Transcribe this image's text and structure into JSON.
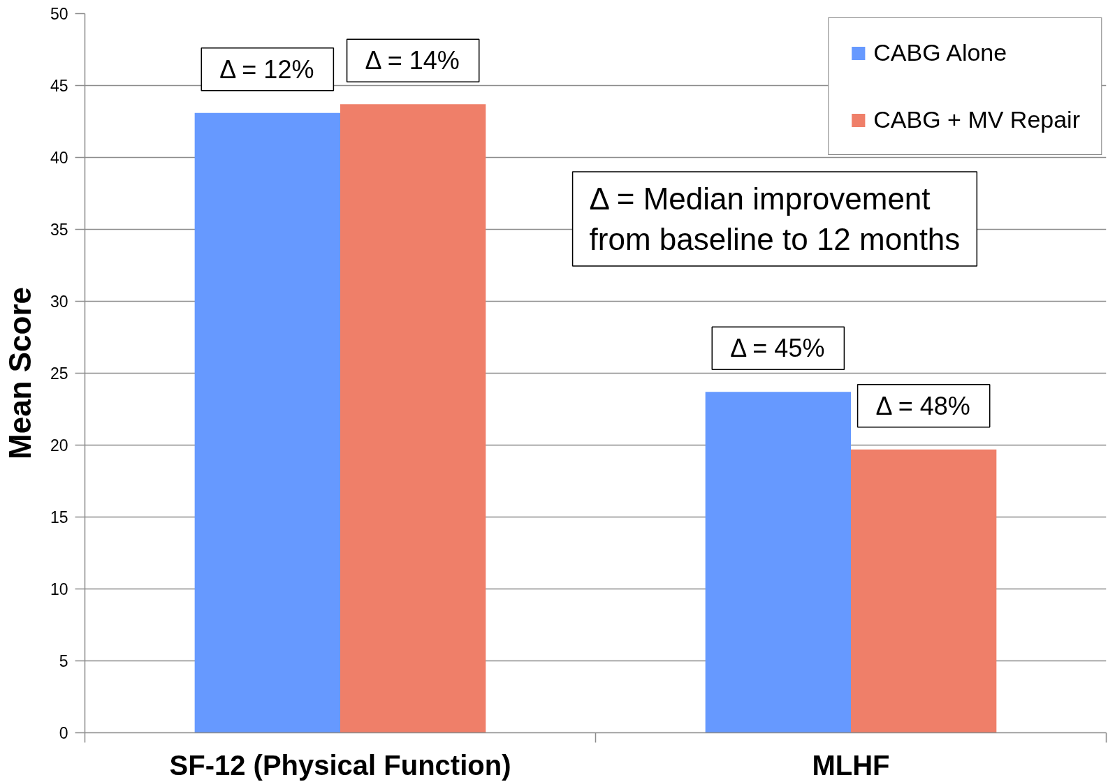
{
  "chart_data": {
    "type": "bar",
    "categories": [
      "SF-12 (Physical Function)",
      "MLHF"
    ],
    "ylabel": "Mean Score",
    "series": [
      {
        "name": "CABG Alone",
        "color": "#6699ff",
        "values": [
          43.1,
          23.7
        ]
      },
      {
        "name": "CABG + MV Repair",
        "color": "#ef7f69",
        "values": [
          43.7,
          19.7
        ]
      }
    ],
    "ylim": [
      0,
      50
    ],
    "yticks": [
      0,
      5,
      10,
      15,
      20,
      25,
      30,
      35,
      40,
      45,
      50
    ],
    "grid": "y",
    "legend": "top right",
    "annotations": [
      {
        "text": "Δ = 12%",
        "x": "SF-12 (Physical Function)",
        "y": 43.1
      },
      {
        "text": "Δ = 14%",
        "x": "SF-12 (Physical Function)",
        "y": 43.7
      },
      {
        "text": "Δ = 45%",
        "x": "MLHF",
        "y": 23.7
      },
      {
        "text": "Δ = 48%",
        "x": "MLHF",
        "y": 19.7
      },
      "Δ = Median improvement from baseline to 12 months"
    ]
  }
}
